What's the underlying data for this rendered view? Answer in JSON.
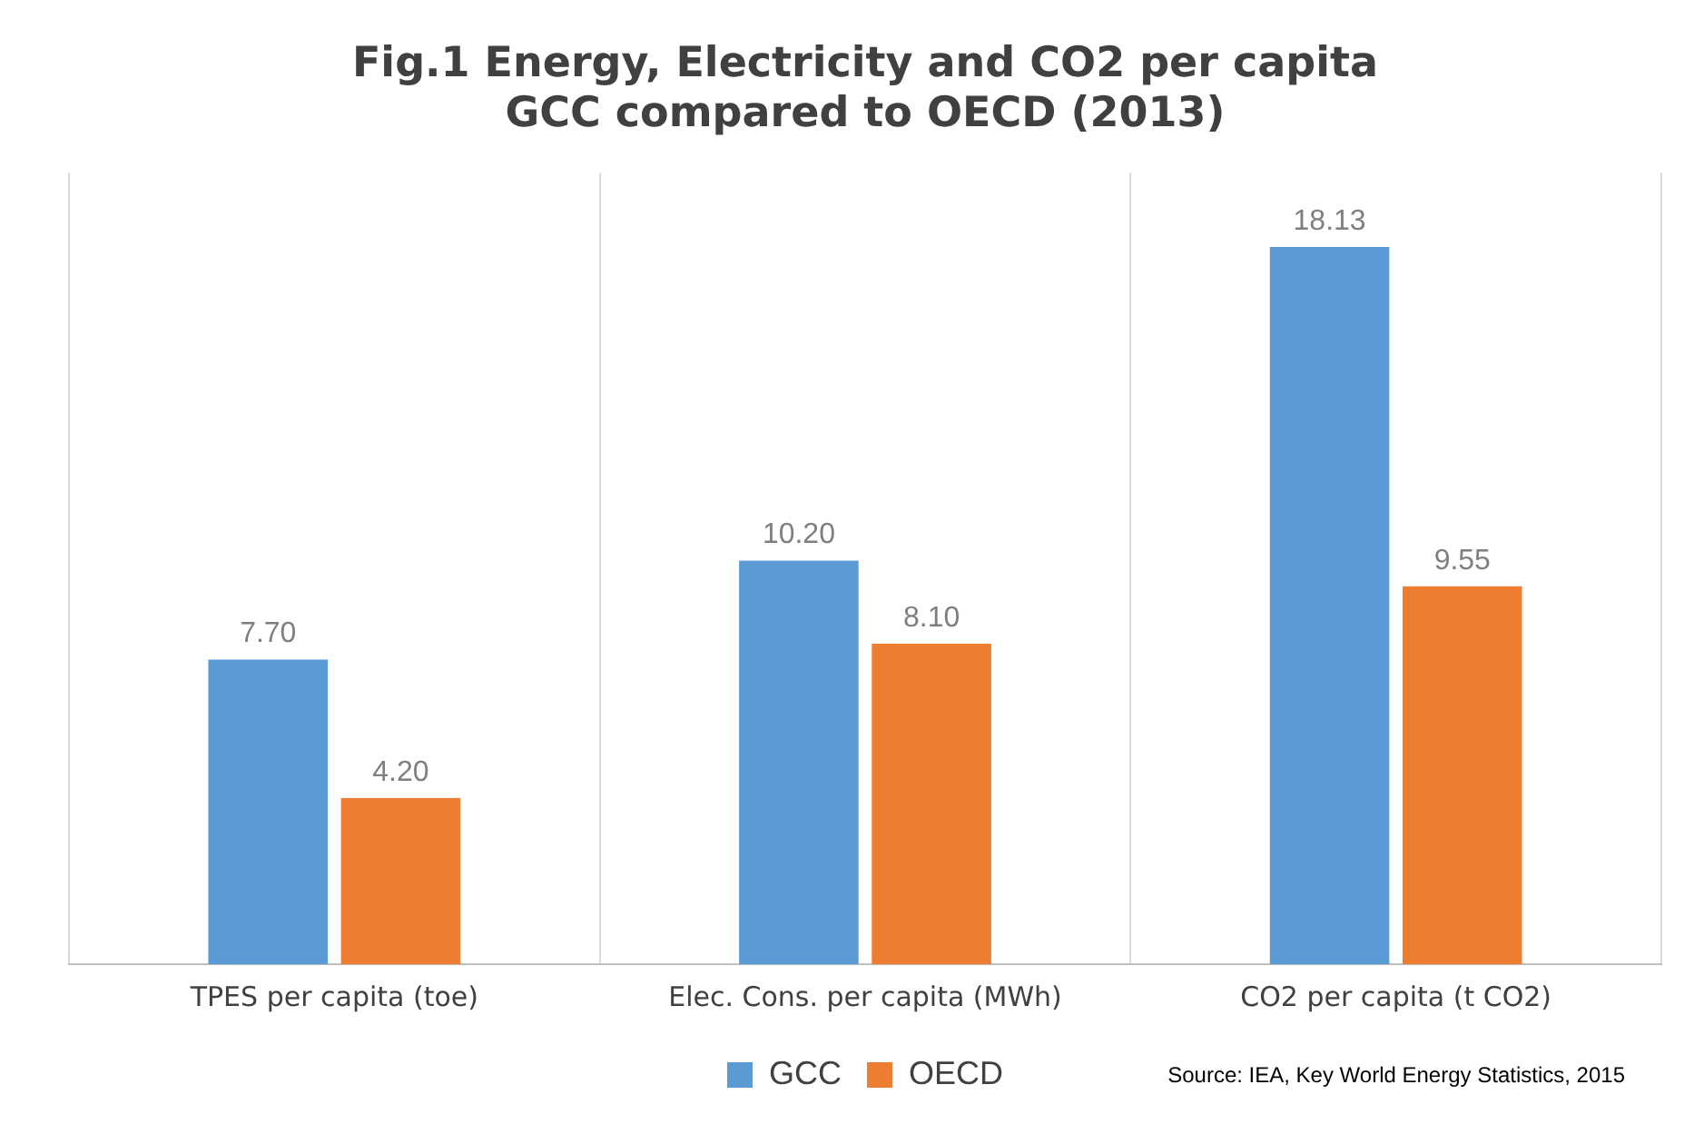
{
  "chart_data": {
    "type": "bar",
    "title": "Fig.1 Energy, Electricity and CO2 per capita\nGCC compared to OECD (2013)",
    "categories": [
      "TPES per capita (toe)",
      "Elec. Cons. per capita (MWh)",
      "CO2 per capita (t CO2)"
    ],
    "series": [
      {
        "name": "GCC",
        "color": "#5b9bd5",
        "values": [
          7.7,
          10.2,
          18.13
        ],
        "value_labels": [
          "7.70",
          "10.20",
          "18.13"
        ]
      },
      {
        "name": "OECD",
        "color": "#ed7d31",
        "values": [
          4.2,
          8.1,
          9.55
        ],
        "value_labels": [
          "4.20",
          "8.10",
          "9.55"
        ]
      }
    ],
    "grid": "x",
    "legend": "bottom",
    "tick_labels": "x",
    "annotations": [
      "Source: IEA, Key World Energy Statistics, 2015"
    ]
  }
}
